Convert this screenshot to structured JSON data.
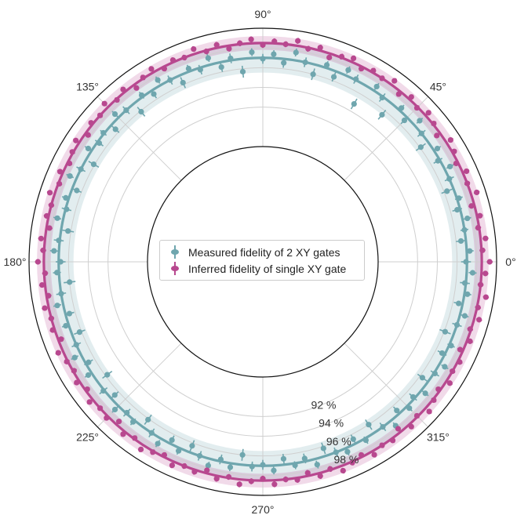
{
  "chart_data": {
    "type": "scatter",
    "projection": "polar",
    "title": "",
    "theta_unit": "degrees",
    "theta_ticks": [
      "0°",
      "45°",
      "90°",
      "135°",
      "180°",
      "225°",
      "270°",
      "315°"
    ],
    "radial_ticks": [
      "92 %",
      "94 %",
      "96 %",
      "98 %"
    ],
    "radial_tick_angle_deg": 292.5,
    "radial_range_percent": [
      88,
      100
    ],
    "grid": true,
    "legend_position": "center",
    "legend": [
      "Measured fidelity of 2 XY gates",
      "Inferred fidelity of single XY gate"
    ],
    "series": [
      {
        "name": "Measured fidelity of 2 XY gates",
        "color": "#6fa6ae",
        "mean": 97.0,
        "band": [
          95.5,
          98.4
        ],
        "points": [
          [
            0,
            96.9,
            0.5
          ],
          [
            3,
            97.3,
            0.4
          ],
          [
            6,
            96.5,
            0.5
          ],
          [
            9,
            97.0,
            0.4
          ],
          [
            12,
            97.5,
            0.4
          ],
          [
            15,
            96.7,
            0.5
          ],
          [
            18,
            97.2,
            0.4
          ],
          [
            21,
            96.3,
            0.6
          ],
          [
            24,
            97.0,
            0.5
          ],
          [
            27,
            97.6,
            0.4
          ],
          [
            30,
            96.8,
            0.5
          ],
          [
            33,
            97.4,
            0.4
          ],
          [
            36,
            96.1,
            0.6
          ],
          [
            39,
            97.0,
            0.5
          ],
          [
            42,
            97.7,
            0.4
          ],
          [
            45,
            96.6,
            0.5
          ],
          [
            48,
            97.3,
            0.4
          ],
          [
            51,
            95.5,
            0.6
          ],
          [
            54,
            96.9,
            0.5
          ],
          [
            57,
            97.5,
            0.4
          ],
          [
            60,
            94.8,
            0.6
          ],
          [
            63,
            97.1,
            0.5
          ],
          [
            66,
            97.6,
            0.4
          ],
          [
            69,
            96.4,
            0.5
          ],
          [
            72,
            97.3,
            0.4
          ],
          [
            75,
            96.0,
            0.6
          ],
          [
            78,
            97.0,
            0.5
          ],
          [
            81,
            97.8,
            0.4
          ],
          [
            84,
            96.6,
            0.5
          ],
          [
            87,
            97.4,
            0.4
          ],
          [
            90,
            96.9,
            0.5
          ],
          [
            93,
            97.6,
            0.4
          ],
          [
            96,
            95.7,
            0.6
          ],
          [
            99,
            97.2,
            0.5
          ],
          [
            102,
            96.5,
            0.5
          ],
          [
            105,
            97.7,
            0.4
          ],
          [
            108,
            96.8,
            0.5
          ],
          [
            111,
            97.3,
            0.4
          ],
          [
            114,
            96.2,
            0.6
          ],
          [
            117,
            97.0,
            0.5
          ],
          [
            120,
            97.6,
            0.4
          ],
          [
            123,
            96.6,
            0.5
          ],
          [
            126,
            97.2,
            0.4
          ],
          [
            129,
            95.9,
            0.6
          ],
          [
            132,
            97.0,
            0.5
          ],
          [
            135,
            97.5,
            0.4
          ],
          [
            138,
            96.4,
            0.5
          ],
          [
            141,
            97.1,
            0.4
          ],
          [
            144,
            96.8,
            0.5
          ],
          [
            147,
            97.4,
            0.4
          ],
          [
            150,
            96.1,
            0.6
          ],
          [
            153,
            97.0,
            0.5
          ],
          [
            156,
            97.7,
            0.4
          ],
          [
            159,
            96.5,
            0.5
          ],
          [
            162,
            97.3,
            0.4
          ],
          [
            165,
            96.9,
            0.5
          ],
          [
            168,
            97.6,
            0.4
          ],
          [
            171,
            96.3,
            0.6
          ],
          [
            174,
            97.1,
            0.5
          ],
          [
            177,
            97.5,
            0.4
          ],
          [
            180,
            96.8,
            0.5
          ],
          [
            183,
            97.2,
            0.4
          ],
          [
            186,
            96.0,
            0.6
          ],
          [
            189,
            97.0,
            0.5
          ],
          [
            192,
            97.6,
            0.4
          ],
          [
            195,
            96.6,
            0.5
          ],
          [
            198,
            97.3,
            0.4
          ],
          [
            201,
            96.2,
            0.6
          ],
          [
            204,
            97.0,
            0.5
          ],
          [
            207,
            97.7,
            0.4
          ],
          [
            210,
            96.7,
            0.5
          ],
          [
            213,
            97.4,
            0.4
          ],
          [
            216,
            95.8,
            0.6
          ],
          [
            219,
            97.1,
            0.5
          ],
          [
            222,
            96.5,
            0.5
          ],
          [
            225,
            97.5,
            0.4
          ],
          [
            228,
            96.9,
            0.5
          ],
          [
            231,
            97.2,
            0.4
          ],
          [
            234,
            96.1,
            0.6
          ],
          [
            237,
            97.0,
            0.5
          ],
          [
            240,
            97.6,
            0.4
          ],
          [
            243,
            96.6,
            0.5
          ],
          [
            246,
            97.3,
            0.4
          ],
          [
            249,
            96.3,
            0.6
          ],
          [
            252,
            97.0,
            0.5
          ],
          [
            255,
            97.7,
            0.4
          ],
          [
            258,
            96.8,
            0.5
          ],
          [
            261,
            97.4,
            0.4
          ],
          [
            264,
            96.0,
            0.6
          ],
          [
            267,
            97.1,
            0.5
          ],
          [
            270,
            96.9,
            0.5
          ],
          [
            273,
            97.5,
            0.4
          ],
          [
            276,
            96.4,
            0.5
          ],
          [
            279,
            97.2,
            0.4
          ],
          [
            282,
            96.7,
            0.5
          ],
          [
            285,
            97.6,
            0.4
          ],
          [
            288,
            96.2,
            0.6
          ],
          [
            291,
            97.0,
            0.5
          ],
          [
            294,
            97.4,
            0.4
          ],
          [
            297,
            96.5,
            0.5
          ],
          [
            300,
            97.2,
            0.4
          ],
          [
            303,
            96.0,
            0.6
          ],
          [
            306,
            97.0,
            0.5
          ],
          [
            309,
            97.7,
            0.4
          ],
          [
            312,
            96.6,
            0.5
          ],
          [
            315,
            97.3,
            0.4
          ],
          [
            318,
            96.8,
            0.5
          ],
          [
            321,
            97.5,
            0.4
          ],
          [
            324,
            96.3,
            0.6
          ],
          [
            327,
            97.1,
            0.5
          ],
          [
            330,
            97.6,
            0.4
          ],
          [
            333,
            96.7,
            0.5
          ],
          [
            336,
            97.2,
            0.4
          ],
          [
            339,
            96.1,
            0.6
          ],
          [
            342,
            97.0,
            0.5
          ],
          [
            345,
            97.5,
            0.4
          ],
          [
            348,
            96.6,
            0.5
          ],
          [
            351,
            97.3,
            0.4
          ],
          [
            354,
            96.9,
            0.5
          ],
          [
            357,
            97.6,
            0.4
          ]
        ]
      },
      {
        "name": "Inferred fidelity of single XY gate",
        "color": "#b8488f",
        "mean": 98.5,
        "band": [
          97.8,
          99.2
        ],
        "points": [
          [
            0,
            99.3,
            0.3
          ],
          [
            3,
            98.6,
            0.3
          ],
          [
            6,
            99.0,
            0.3
          ],
          [
            9,
            98.4,
            0.3
          ],
          [
            12,
            98.8,
            0.3
          ],
          [
            15,
            98.2,
            0.3
          ],
          [
            18,
            99.1,
            0.3
          ],
          [
            21,
            98.5,
            0.3
          ],
          [
            24,
            98.9,
            0.3
          ],
          [
            27,
            98.3,
            0.3
          ],
          [
            30,
            98.7,
            0.3
          ],
          [
            33,
            99.0,
            0.3
          ],
          [
            36,
            98.1,
            0.3
          ],
          [
            39,
            98.6,
            0.3
          ],
          [
            42,
            98.9,
            0.3
          ],
          [
            45,
            98.4,
            0.3
          ],
          [
            48,
            98.8,
            0.3
          ],
          [
            51,
            98.2,
            0.3
          ],
          [
            54,
            99.0,
            0.3
          ],
          [
            57,
            98.5,
            0.3
          ],
          [
            60,
            98.7,
            0.3
          ],
          [
            63,
            98.3,
            0.3
          ],
          [
            66,
            98.9,
            0.3
          ],
          [
            69,
            98.6,
            0.3
          ],
          [
            72,
            98.1,
            0.3
          ],
          [
            75,
            98.8,
            0.3
          ],
          [
            78,
            98.4,
            0.3
          ],
          [
            81,
            99.0,
            0.3
          ],
          [
            84,
            98.5,
            0.3
          ],
          [
            87,
            98.7,
            0.3
          ],
          [
            90,
            98.3,
            0.3
          ],
          [
            93,
            98.9,
            0.3
          ],
          [
            96,
            98.6,
            0.3
          ],
          [
            99,
            98.2,
            0.3
          ],
          [
            102,
            98.8,
            0.3
          ],
          [
            105,
            98.4,
            0.3
          ],
          [
            108,
            99.0,
            0.3
          ],
          [
            111,
            98.5,
            0.3
          ],
          [
            114,
            98.7,
            0.3
          ],
          [
            117,
            98.3,
            0.3
          ],
          [
            120,
            98.9,
            0.3
          ],
          [
            123,
            98.6,
            0.3
          ],
          [
            126,
            98.1,
            0.3
          ],
          [
            129,
            98.8,
            0.3
          ],
          [
            132,
            98.4,
            0.3
          ],
          [
            135,
            99.0,
            0.3
          ],
          [
            138,
            98.5,
            0.3
          ],
          [
            141,
            98.7,
            0.3
          ],
          [
            144,
            98.2,
            0.3
          ],
          [
            147,
            98.9,
            0.3
          ],
          [
            150,
            98.6,
            0.3
          ],
          [
            153,
            98.3,
            0.3
          ],
          [
            156,
            98.8,
            0.3
          ],
          [
            159,
            98.4,
            0.3
          ],
          [
            162,
            99.0,
            0.3
          ],
          [
            165,
            98.5,
            0.3
          ],
          [
            168,
            98.7,
            0.3
          ],
          [
            171,
            98.2,
            0.3
          ],
          [
            174,
            98.9,
            0.3
          ],
          [
            177,
            98.6,
            0.3
          ],
          [
            180,
            99.1,
            0.3
          ],
          [
            183,
            98.4,
            0.3
          ],
          [
            186,
            98.8,
            0.3
          ],
          [
            189,
            98.3,
            0.3
          ],
          [
            192,
            98.9,
            0.3
          ],
          [
            195,
            98.5,
            0.3
          ],
          [
            198,
            98.7,
            0.3
          ],
          [
            201,
            98.2,
            0.3
          ],
          [
            204,
            99.0,
            0.3
          ],
          [
            207,
            98.6,
            0.3
          ],
          [
            210,
            98.4,
            0.3
          ],
          [
            213,
            98.8,
            0.3
          ],
          [
            216,
            98.3,
            0.3
          ],
          [
            219,
            98.9,
            0.3
          ],
          [
            222,
            98.5,
            0.3
          ],
          [
            225,
            98.7,
            0.3
          ],
          [
            228,
            98.1,
            0.3
          ],
          [
            231,
            98.8,
            0.3
          ],
          [
            234,
            98.4,
            0.3
          ],
          [
            237,
            99.0,
            0.3
          ],
          [
            240,
            98.6,
            0.3
          ],
          [
            243,
            98.3,
            0.3
          ],
          [
            246,
            98.9,
            0.3
          ],
          [
            249,
            98.5,
            0.3
          ],
          [
            252,
            98.7,
            0.3
          ],
          [
            255,
            98.2,
            0.3
          ],
          [
            258,
            98.8,
            0.3
          ],
          [
            261,
            98.4,
            0.3
          ],
          [
            264,
            99.0,
            0.3
          ],
          [
            267,
            98.6,
            0.3
          ],
          [
            270,
            98.3,
            0.3
          ],
          [
            273,
            98.9,
            0.3
          ],
          [
            276,
            98.5,
            0.3
          ],
          [
            279,
            98.7,
            0.3
          ],
          [
            282,
            98.2,
            0.3
          ],
          [
            285,
            98.8,
            0.3
          ],
          [
            288,
            98.4,
            0.3
          ],
          [
            291,
            99.0,
            0.3
          ],
          [
            294,
            98.6,
            0.3
          ],
          [
            297,
            98.3,
            0.3
          ],
          [
            300,
            98.9,
            0.3
          ],
          [
            303,
            98.5,
            0.3
          ],
          [
            306,
            98.7,
            0.3
          ],
          [
            309,
            98.1,
            0.3
          ],
          [
            312,
            98.8,
            0.3
          ],
          [
            315,
            98.4,
            0.3
          ],
          [
            318,
            99.0,
            0.3
          ],
          [
            321,
            98.6,
            0.3
          ],
          [
            324,
            98.3,
            0.3
          ],
          [
            327,
            98.9,
            0.3
          ],
          [
            330,
            98.5,
            0.3
          ],
          [
            333,
            98.7,
            0.3
          ],
          [
            336,
            98.2,
            0.3
          ],
          [
            339,
            98.8,
            0.3
          ],
          [
            342,
            98.4,
            0.3
          ],
          [
            345,
            99.0,
            0.3
          ],
          [
            348,
            98.6,
            0.3
          ],
          [
            351,
            99.2,
            0.3
          ],
          [
            354,
            98.5,
            0.3
          ],
          [
            357,
            98.9,
            0.3
          ]
        ]
      }
    ]
  }
}
